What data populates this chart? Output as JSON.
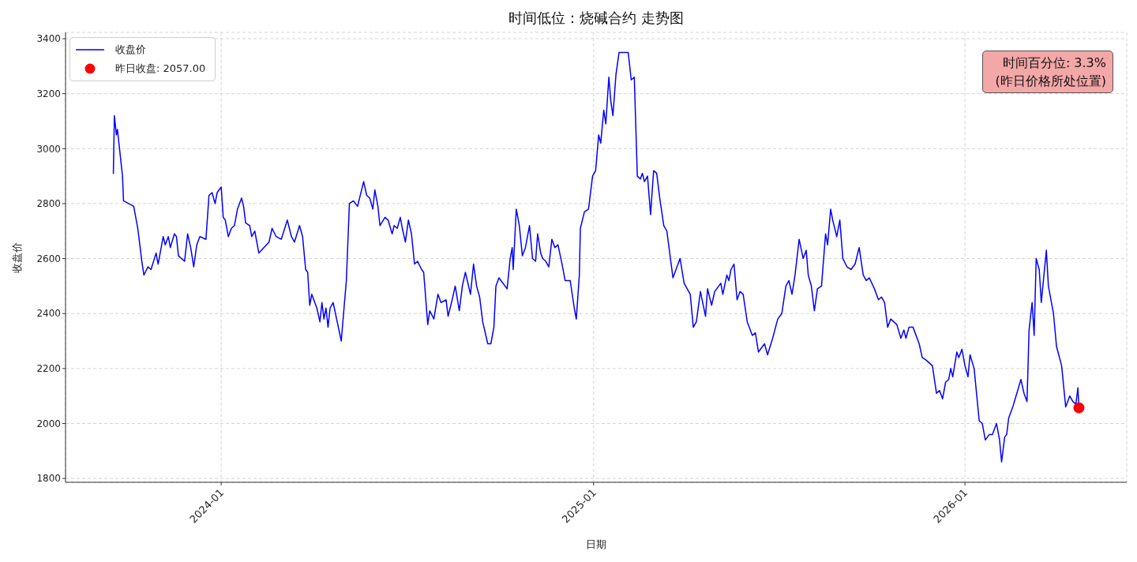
{
  "chart_data": {
    "type": "line",
    "title": "时间低位：烧碱合约 走势图",
    "xlabel": "日期",
    "ylabel": "收盘价",
    "xlim": [
      "2023-08-01",
      "2026-06-09"
    ],
    "xticks": [
      "2024-01",
      "2025-01",
      "2026-01"
    ],
    "ylim": [
      1786,
      3423
    ],
    "yticks": [
      1800,
      2000,
      2200,
      2400,
      2600,
      2800,
      3000,
      3200,
      3400
    ],
    "grid": true,
    "legend": "top left",
    "annotations": [
      "时间百分位: 3.3%\n(昨日价格所处位置)"
    ],
    "series": [
      {
        "name": "收盘价",
        "color": "#0000ff",
        "x": [
          "2023-09-17",
          "2023-09-18",
          "2023-09-20",
          "2023-09-21",
          "2023-09-26",
          "2023-09-27",
          "2023-10-07",
          "2023-10-09",
          "2023-10-11",
          "2023-10-12",
          "2023-10-15",
          "2023-10-17",
          "2023-10-21",
          "2023-10-24",
          "2023-10-29",
          "2023-10-31",
          "2023-11-05",
          "2023-11-07",
          "2023-11-10",
          "2023-11-12",
          "2023-11-16",
          "2023-11-18",
          "2023-11-20",
          "2023-11-26",
          "2023-11-29",
          "2023-12-02",
          "2023-12-05",
          "2023-12-08",
          "2023-12-11",
          "2023-12-17",
          "2023-12-20",
          "2023-12-23",
          "2023-12-26",
          "2023-12-28",
          "2024-01-01",
          "2024-01-03",
          "2024-01-05",
          "2024-01-08",
          "2024-01-11",
          "2024-01-14",
          "2024-01-17",
          "2024-01-21",
          "2024-01-23",
          "2024-01-25",
          "2024-01-29",
          "2024-01-31",
          "2024-02-03",
          "2024-02-07",
          "2024-02-17",
          "2024-02-20",
          "2024-02-24",
          "2024-02-29",
          "2024-03-06",
          "2024-03-10",
          "2024-03-13",
          "2024-03-18",
          "2024-03-21",
          "2024-03-24",
          "2024-03-26",
          "2024-03-28",
          "2024-03-30",
          "2024-04-04",
          "2024-04-07",
          "2024-04-09",
          "2024-04-11",
          "2024-04-13",
          "2024-04-15",
          "2024-04-17",
          "2024-04-20",
          "2024-04-24",
          "2024-04-28",
          "2024-05-03",
          "2024-05-06",
          "2024-05-10",
          "2024-05-14",
          "2024-05-20",
          "2024-05-23",
          "2024-05-26",
          "2024-05-29",
          "2024-05-31",
          "2024-06-03",
          "2024-06-05",
          "2024-06-10",
          "2024-06-13",
          "2024-06-17",
          "2024-06-19",
          "2024-06-22",
          "2024-06-25",
          "2024-06-27",
          "2024-06-30",
          "2024-07-03",
          "2024-07-06",
          "2024-07-09",
          "2024-07-12",
          "2024-07-16",
          "2024-07-18",
          "2024-07-22",
          "2024-07-24",
          "2024-07-28",
          "2024-08-01",
          "2024-08-04",
          "2024-08-09",
          "2024-08-11",
          "2024-08-15",
          "2024-08-18",
          "2024-08-22",
          "2024-08-25",
          "2024-08-28",
          "2024-09-02",
          "2024-09-05",
          "2024-09-08",
          "2024-09-11",
          "2024-09-14",
          "2024-09-19",
          "2024-09-22",
          "2024-09-25",
          "2024-09-27",
          "2024-09-30",
          "2024-10-08",
          "2024-10-11",
          "2024-10-13",
          "2024-10-14",
          "2024-10-17",
          "2024-10-20",
          "2024-10-23",
          "2024-10-26",
          "2024-10-30",
          "2024-11-02",
          "2024-11-05",
          "2024-11-07",
          "2024-11-10",
          "2024-11-12",
          "2024-11-15",
          "2024-11-18",
          "2024-11-21",
          "2024-11-24",
          "2024-11-27",
          "2024-12-01",
          "2024-12-04",
          "2024-12-09",
          "2024-12-13",
          "2024-12-15",
          "2024-12-18",
          "2024-12-19",
          "2024-12-23",
          "2024-12-27",
          "2024-12-31",
          "2025-01-03",
          "2025-01-06",
          "2025-01-08",
          "2025-01-11",
          "2025-01-13",
          "2025-01-16",
          "2025-01-18",
          "2025-01-20",
          "2025-01-23",
          "2025-01-26",
          "2025-02-04",
          "2025-02-07",
          "2025-02-10",
          "2025-02-13",
          "2025-02-16",
          "2025-02-18",
          "2025-02-20",
          "2025-02-23",
          "2025-02-26",
          "2025-03-01",
          "2025-03-04",
          "2025-03-07",
          "2025-03-11",
          "2025-03-14",
          "2025-03-20",
          "2025-03-24",
          "2025-03-27",
          "2025-03-31",
          "2025-04-06",
          "2025-04-09",
          "2025-04-12",
          "2025-04-16",
          "2025-04-21",
          "2025-04-23",
          "2025-04-27",
          "2025-04-30",
          "2025-05-06",
          "2025-05-08",
          "2025-05-12",
          "2025-05-14",
          "2025-05-16",
          "2025-05-19",
          "2025-05-22",
          "2025-05-25",
          "2025-05-28",
          "2025-06-01",
          "2025-06-06",
          "2025-06-09",
          "2025-06-12",
          "2025-06-18",
          "2025-06-21",
          "2025-06-26",
          "2025-07-01",
          "2025-07-05",
          "2025-07-09",
          "2025-07-12",
          "2025-07-15",
          "2025-07-18",
          "2025-07-22",
          "2025-07-26",
          "2025-07-29",
          "2025-07-31",
          "2025-08-03",
          "2025-08-06",
          "2025-08-09",
          "2025-08-13",
          "2025-08-17",
          "2025-08-19",
          "2025-08-22",
          "2025-08-24",
          "2025-08-28",
          "2025-08-31",
          "2025-09-03",
          "2025-09-07",
          "2025-09-11",
          "2025-09-15",
          "2025-09-19",
          "2025-09-23",
          "2025-09-26",
          "2025-09-29",
          "2025-10-04",
          "2025-10-08",
          "2025-10-11",
          "2025-10-14",
          "2025-10-17",
          "2025-10-20",
          "2025-10-26",
          "2025-10-30",
          "2025-11-02",
          "2025-11-04",
          "2025-11-07",
          "2025-11-11",
          "2025-11-17",
          "2025-11-20",
          "2025-11-24",
          "2025-11-30",
          "2025-12-04",
          "2025-12-07",
          "2025-12-10",
          "2025-12-13",
          "2025-12-16",
          "2025-12-18",
          "2025-12-20",
          "2025-12-24",
          "2025-12-26",
          "2025-12-29",
          "2026-01-01",
          "2026-01-04",
          "2026-01-06",
          "2026-01-10",
          "2026-01-15",
          "2026-01-18",
          "2026-01-21",
          "2026-01-25",
          "2026-01-28",
          "2026-02-01",
          "2026-02-04",
          "2026-02-06",
          "2026-02-09",
          "2026-02-11",
          "2026-02-13",
          "2026-02-17",
          "2026-02-21",
          "2026-02-25",
          "2026-02-28",
          "2026-03-03",
          "2026-03-05",
          "2026-03-08",
          "2026-03-10",
          "2026-03-12",
          "2026-03-15",
          "2026-03-17",
          "2026-03-22",
          "2026-03-24",
          "2026-03-29",
          "2026-04-01",
          "2026-04-06",
          "2026-04-10",
          "2026-04-14",
          "2026-04-17",
          "2026-04-20",
          "2026-04-22",
          "2026-04-23"
        ],
        "values": [
          2910,
          3120,
          3050,
          3070,
          2900,
          2810,
          2790,
          2750,
          2710,
          2680,
          2590,
          2540,
          2570,
          2560,
          2620,
          2580,
          2680,
          2650,
          2680,
          2640,
          2690,
          2680,
          2610,
          2590,
          2690,
          2640,
          2570,
          2650,
          2680,
          2670,
          2830,
          2840,
          2800,
          2840,
          2860,
          2750,
          2740,
          2680,
          2710,
          2720,
          2780,
          2820,
          2790,
          2730,
          2720,
          2680,
          2700,
          2620,
          2660,
          2710,
          2680,
          2670,
          2740,
          2680,
          2660,
          2720,
          2680,
          2560,
          2550,
          2430,
          2470,
          2420,
          2370,
          2440,
          2380,
          2420,
          2350,
          2420,
          2440,
          2370,
          2300,
          2520,
          2800,
          2810,
          2790,
          2880,
          2830,
          2820,
          2780,
          2850,
          2790,
          2720,
          2750,
          2740,
          2690,
          2720,
          2710,
          2750,
          2710,
          2660,
          2740,
          2690,
          2580,
          2590,
          2560,
          2550,
          2360,
          2410,
          2380,
          2470,
          2440,
          2450,
          2390,
          2450,
          2500,
          2410,
          2500,
          2550,
          2470,
          2580,
          2500,
          2460,
          2370,
          2290,
          2290,
          2350,
          2500,
          2530,
          2490,
          2600,
          2640,
          2560,
          2780,
          2720,
          2610,
          2640,
          2720,
          2600,
          2590,
          2690,
          2620,
          2600,
          2590,
          2570,
          2670,
          2640,
          2650,
          2580,
          2520,
          2520,
          2420,
          2380,
          2540,
          2710,
          2770,
          2780,
          2900,
          2920,
          3050,
          3020,
          3140,
          3090,
          3260,
          3170,
          3120,
          3270,
          3350,
          3350,
          3250,
          3260,
          2900,
          2890,
          2910,
          2880,
          2900,
          2760,
          2920,
          2910,
          2820,
          2720,
          2700,
          2530,
          2570,
          2600,
          2510,
          2470,
          2350,
          2370,
          2480,
          2390,
          2490,
          2430,
          2480,
          2510,
          2470,
          2540,
          2520,
          2560,
          2580,
          2450,
          2480,
          2470,
          2370,
          2320,
          2330,
          2260,
          2290,
          2250,
          2310,
          2380,
          2400,
          2500,
          2520,
          2470,
          2540,
          2670,
          2600,
          2630,
          2540,
          2500,
          2410,
          2490,
          2500,
          2690,
          2650,
          2780,
          2740,
          2680,
          2740,
          2600,
          2570,
          2560,
          2580,
          2640,
          2540,
          2520,
          2530,
          2490,
          2450,
          2460,
          2440,
          2350,
          2380,
          2360,
          2310,
          2340,
          2310,
          2350,
          2350,
          2290,
          2240,
          2230,
          2210,
          2110,
          2120,
          2090,
          2150,
          2160,
          2200,
          2170,
          2260,
          2240,
          2270,
          2210,
          2170,
          2250,
          2200,
          2010,
          2000,
          1940,
          1960,
          1960,
          2000,
          1940,
          1860,
          1950,
          1960,
          2020,
          2060,
          2110,
          2160,
          2110,
          2080,
          2340,
          2440,
          2320,
          2600,
          2560,
          2440,
          2630,
          2500,
          2400,
          2280,
          2210,
          2060,
          2100,
          2080,
          2070,
          2130,
          2057
        ]
      },
      {
        "name": "昨日收盘: 2057.00",
        "type": "scatter",
        "color": "#ff0000",
        "marker": "circle",
        "x": [
          "2026-04-23"
        ],
        "values": [
          2057
        ]
      }
    ]
  }
}
